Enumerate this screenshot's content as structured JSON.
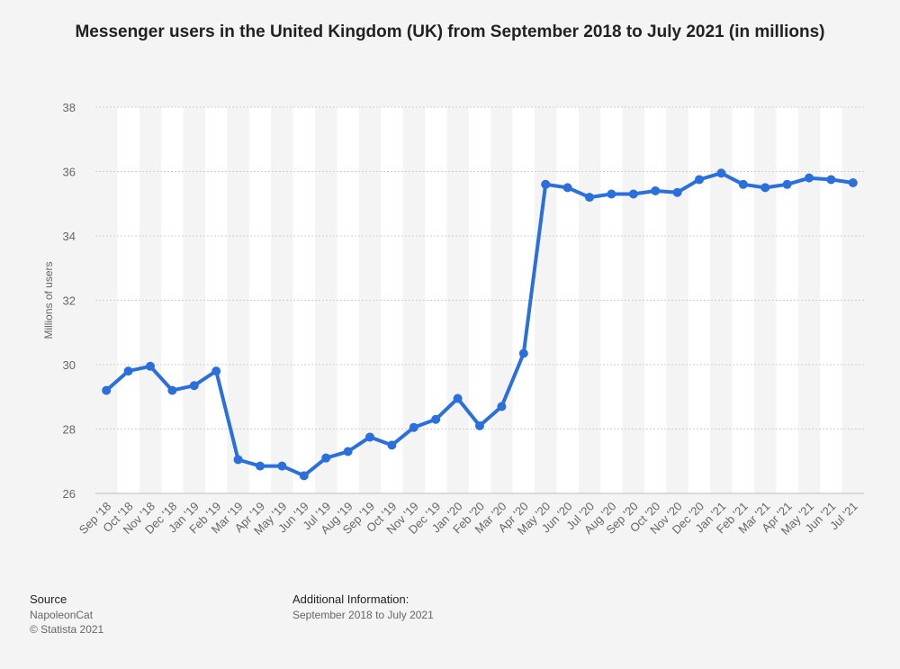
{
  "chart_data": {
    "type": "line",
    "title": "Messenger users in the United Kingdom (UK) from September 2018 to July 2021 (in millions)",
    "xlabel": "",
    "ylabel": "Millions of users",
    "ylim": [
      26,
      38
    ],
    "yticks": [
      26,
      28,
      30,
      32,
      34,
      36,
      38
    ],
    "grid": true,
    "legend": "none",
    "line_color": "#2b6fdc",
    "categories": [
      "Sep '18",
      "Oct '18",
      "Nov '18",
      "Dec '18",
      "Jan '19",
      "Feb '19",
      "Mar '19",
      "Apr '19",
      "May '19",
      "Jun '19",
      "Jul '19",
      "Aug '19",
      "Sep '19",
      "Oct '19",
      "Nov '19",
      "Dec '19",
      "Jan '20",
      "Feb '20",
      "Mar '20",
      "Apr '20",
      "May '20",
      "Jun '20",
      "Jul '20",
      "Aug '20",
      "Sep '20",
      "Oct '20",
      "Nov '20",
      "Dec '20",
      "Jan '21",
      "Feb '21",
      "Mar '21",
      "Apr '21",
      "May '21",
      "Jun '21",
      "Jul '21"
    ],
    "series": [
      {
        "values": [
          29.2,
          29.8,
          29.95,
          29.2,
          29.35,
          29.8,
          27.05,
          26.85,
          26.85,
          26.55,
          27.1,
          27.3,
          27.75,
          27.5,
          28.05,
          28.3,
          28.95,
          28.1,
          28.7,
          30.35,
          35.6,
          35.5,
          35.2,
          35.3,
          35.3,
          35.4,
          35.35,
          35.75,
          35.95,
          35.6,
          35.5,
          35.6,
          35.8,
          35.75,
          35.65
        ]
      }
    ]
  },
  "footer": {
    "source_heading": "Source",
    "source_lines": [
      "NapoleonCat",
      "© Statista 2021"
    ],
    "info_heading": "Additional Information:",
    "info_text": "September 2018 to July 2021"
  }
}
